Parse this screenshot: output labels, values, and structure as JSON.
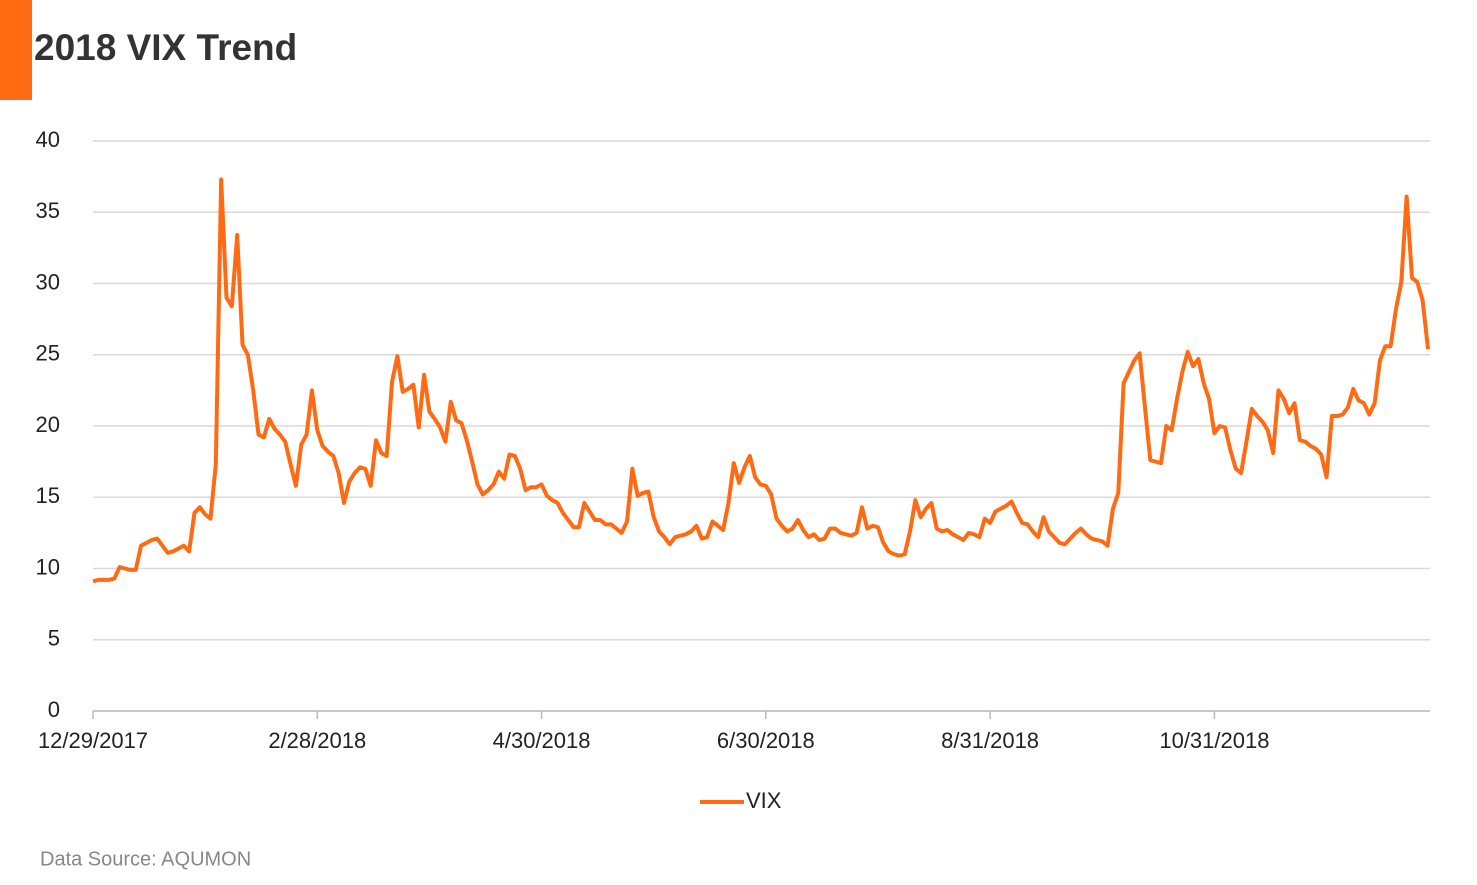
{
  "chart_data": {
    "type": "line",
    "title": "2018 VIX Trend",
    "source": "Data Source: AQUMON",
    "categories": [
      "12/29/2017",
      null,
      null,
      null,
      null,
      null,
      null,
      null,
      null,
      null,
      null,
      null,
      null,
      null,
      null,
      null,
      null,
      null,
      null,
      null,
      null,
      null,
      null,
      null,
      null,
      null,
      null,
      null,
      null,
      null,
      null,
      null,
      null,
      null,
      null,
      null,
      null,
      null,
      null,
      null,
      null,
      null,
      "2/28/2018",
      null,
      null,
      null,
      null,
      null,
      null,
      null,
      null,
      null,
      null,
      null,
      null,
      null,
      null,
      null,
      null,
      null,
      null,
      null,
      null,
      null,
      null,
      null,
      null,
      null,
      null,
      null,
      null,
      null,
      null,
      null,
      null,
      null,
      null,
      null,
      null,
      null,
      null,
      null,
      null,
      null,
      "4/30/2018",
      null,
      null,
      null,
      null,
      null,
      null,
      null,
      null,
      null,
      null,
      null,
      null,
      null,
      null,
      null,
      null,
      null,
      null,
      null,
      null,
      null,
      null,
      null,
      null,
      null,
      null,
      null,
      null,
      null,
      null,
      null,
      null,
      null,
      null,
      null,
      null,
      null,
      null,
      null,
      null,
      null,
      "6/30/2018",
      null,
      null,
      null,
      null,
      null,
      null,
      null,
      null,
      null,
      null,
      null,
      null,
      null,
      null,
      null,
      null,
      null,
      null,
      null,
      null,
      null,
      null,
      null,
      null,
      null,
      null,
      null,
      null,
      null,
      null,
      null,
      null,
      null,
      null,
      null,
      null,
      null,
      null,
      null,
      null,
      null,
      "8/31/2018",
      null,
      null,
      null,
      null,
      null,
      null,
      null,
      null,
      null,
      null,
      null,
      null,
      null,
      null,
      null,
      null,
      null,
      null,
      null,
      null,
      null,
      null,
      null,
      null,
      null,
      null,
      null,
      null,
      null,
      null,
      null,
      null,
      null,
      null,
      null,
      null,
      null,
      null,
      null,
      null,
      null,
      "10/31/2018",
      null,
      null,
      null,
      null,
      null,
      null,
      null,
      null,
      null,
      null,
      null,
      null,
      null,
      null,
      null,
      null,
      null,
      null,
      null,
      null,
      null,
      null,
      null,
      null,
      null,
      null,
      null,
      null,
      null,
      null,
      null,
      null,
      null,
      null,
      null,
      null,
      null,
      null,
      null,
      null
    ],
    "series": [
      {
        "name": "VIX",
        "color": "#ff6a13",
        "values": [
          9.1,
          9.2,
          9.2,
          9.2,
          9.3,
          10.1,
          10.0,
          9.9,
          9.9,
          11.6,
          11.8,
          12.0,
          12.1,
          11.6,
          11.1,
          11.2,
          11.4,
          11.6,
          11.2,
          13.9,
          14.3,
          13.8,
          13.5,
          17.3,
          37.3,
          29.0,
          28.4,
          33.4,
          25.7,
          25.0,
          22.5,
          19.4,
          19.2,
          20.5,
          19.8,
          19.4,
          18.9,
          17.3,
          15.8,
          18.7,
          19.4,
          22.5,
          19.7,
          18.6,
          18.2,
          17.9,
          16.7,
          14.6,
          16.1,
          16.7,
          17.1,
          17.0,
          15.8,
          19.0,
          18.1,
          17.9,
          23.1,
          24.9,
          22.4,
          22.6,
          22.9,
          19.9,
          23.6,
          21.0,
          20.5,
          19.9,
          18.9,
          21.7,
          20.4,
          20.2,
          19.0,
          17.5,
          15.9,
          15.2,
          15.5,
          15.9,
          16.8,
          16.3,
          18.0,
          17.9,
          17.0,
          15.5,
          15.7,
          15.7,
          15.9,
          15.1,
          14.8,
          14.6,
          13.9,
          13.4,
          12.9,
          12.9,
          14.6,
          14.0,
          13.4,
          13.4,
          13.1,
          13.1,
          12.8,
          12.5,
          13.3,
          17.0,
          15.1,
          15.3,
          15.4,
          13.6,
          12.6,
          12.2,
          11.7,
          12.2,
          12.3,
          12.4,
          12.6,
          13.0,
          12.1,
          12.2,
          13.3,
          13.0,
          12.7,
          14.6,
          17.4,
          16.0,
          17.1,
          17.9,
          16.4,
          15.9,
          15.8,
          15.2,
          13.5,
          13.0,
          12.6,
          12.8,
          13.4,
          12.7,
          12.2,
          12.4,
          12.0,
          12.1,
          12.8,
          12.8,
          12.5,
          12.4,
          12.3,
          12.5,
          14.3,
          12.8,
          13.0,
          12.9,
          11.8,
          11.2,
          11.0,
          10.9,
          11.0,
          12.6,
          14.8,
          13.6,
          14.2,
          14.6,
          12.8,
          12.6,
          12.7,
          12.4,
          12.2,
          12.0,
          12.5,
          12.4,
          12.2,
          13.5,
          13.2,
          14.0,
          14.2,
          14.4,
          14.7,
          13.9,
          13.2,
          13.1,
          12.6,
          12.2,
          13.6,
          12.6,
          12.2,
          11.8,
          11.7,
          12.1,
          12.5,
          12.8,
          12.4,
          12.1,
          12.0,
          11.9,
          11.6,
          14.2,
          15.3,
          23.0,
          23.8,
          24.6,
          25.1,
          21.3,
          17.6,
          17.5,
          17.4,
          20.0,
          19.7,
          21.9,
          23.8,
          25.2,
          24.2,
          24.7,
          23.0,
          21.9,
          19.5,
          20.0,
          19.9,
          18.3,
          17.0,
          16.7,
          18.9,
          21.2,
          20.7,
          20.3,
          19.7,
          18.1,
          22.5,
          21.9,
          20.9,
          21.6,
          19.0,
          18.9,
          18.6,
          18.4,
          18.0,
          16.4,
          20.7,
          20.7,
          20.8,
          21.3,
          22.6,
          21.8,
          21.6,
          20.8,
          21.6,
          24.6,
          25.6,
          25.6,
          28.2,
          30.1,
          36.1,
          30.4,
          30.1,
          28.8,
          25.4
        ]
      }
    ],
    "ylim": [
      0,
      40
    ],
    "yticks": [
      0,
      5,
      10,
      15,
      20,
      25,
      30,
      35,
      40
    ],
    "grid": true,
    "legend": "bottom"
  }
}
